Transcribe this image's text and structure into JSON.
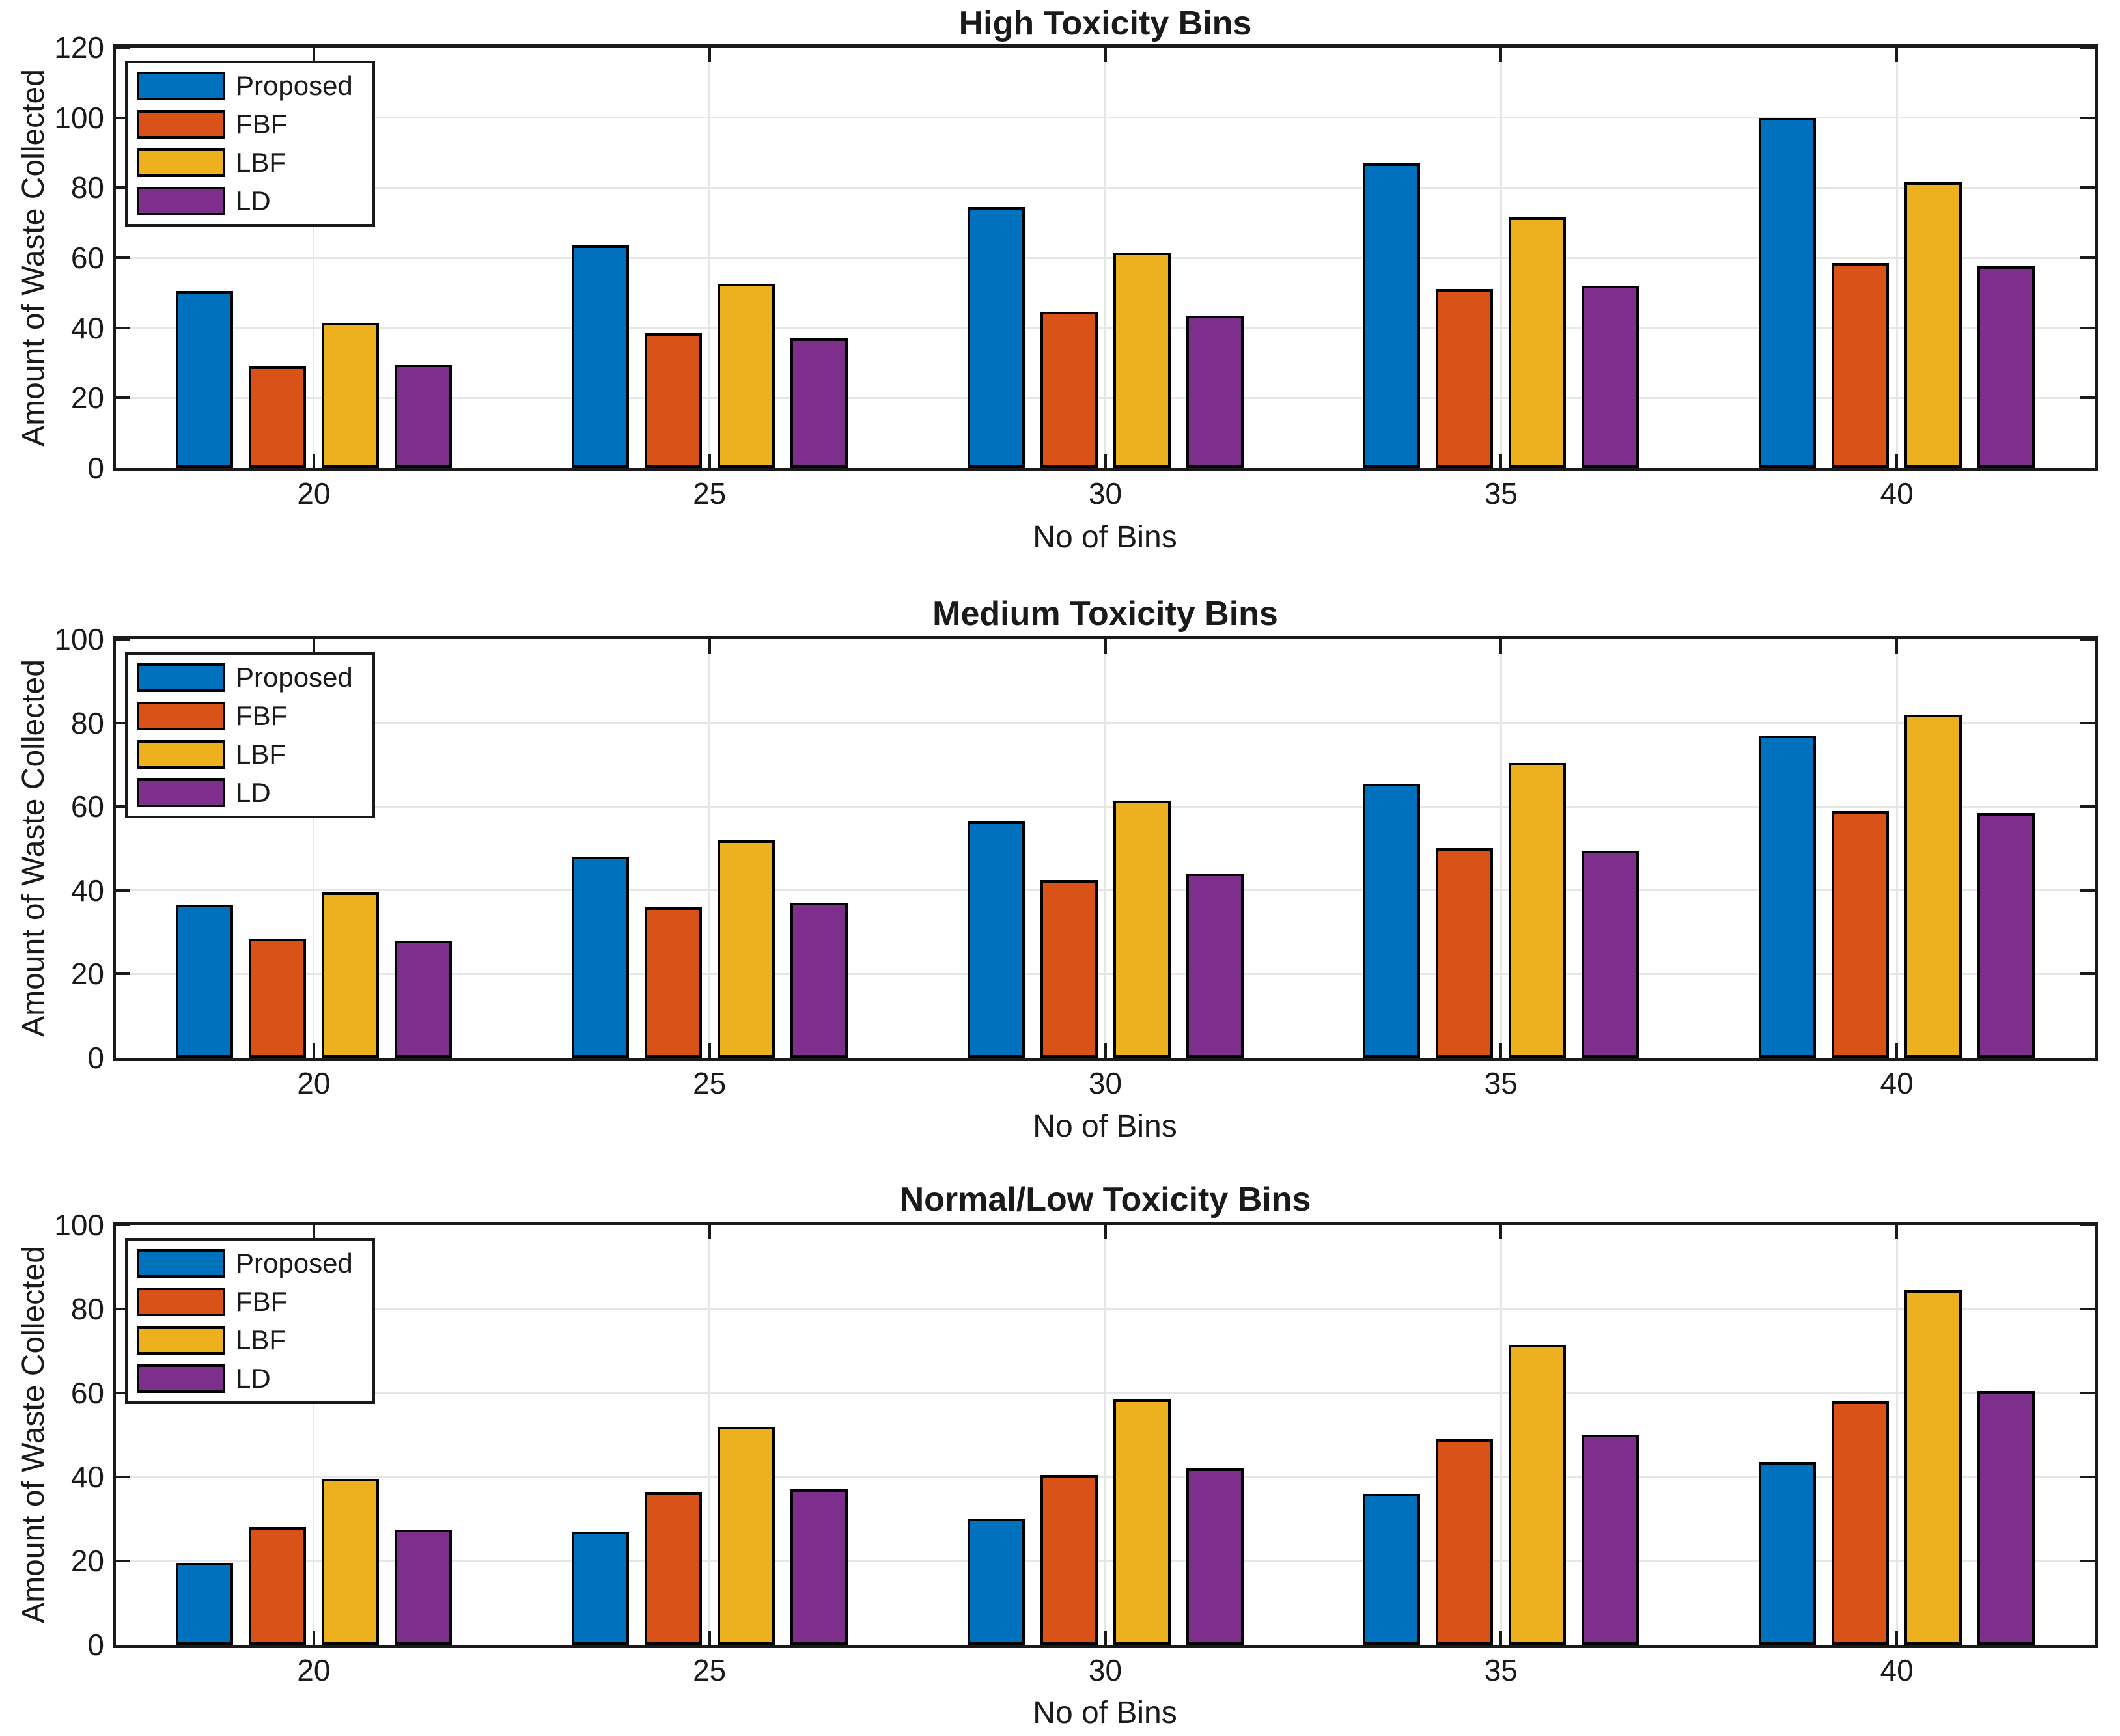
{
  "figure": {
    "background": "#ffffff",
    "axis_color": "#1a1a1a",
    "grid_color": "#e6e6e6"
  },
  "chart_data": [
    {
      "type": "bar",
      "title": "High Toxicity Bins",
      "xlabel": "No of Bins",
      "ylabel": "Amount of Waste Collected",
      "ylim": [
        0,
        120
      ],
      "yticks": [
        0,
        20,
        40,
        60,
        80,
        100,
        120
      ],
      "categories": [
        "20",
        "25",
        "30",
        "35",
        "40"
      ],
      "grid": true,
      "legend_position": "top-left",
      "series": [
        {
          "name": "Proposed",
          "color": "#0072BD",
          "values": [
            50.5,
            63.5,
            74.5,
            87,
            100
          ]
        },
        {
          "name": "FBF",
          "color": "#D95319",
          "values": [
            29,
            38.5,
            44.5,
            51,
            58.5
          ]
        },
        {
          "name": "LBF",
          "color": "#EDB120",
          "values": [
            41.5,
            52.5,
            61.5,
            71.5,
            81.5
          ]
        },
        {
          "name": "LD",
          "color": "#7E2F8E",
          "values": [
            29.5,
            37,
            43.5,
            52,
            57.5
          ]
        }
      ]
    },
    {
      "type": "bar",
      "title": "Medium Toxicity Bins",
      "xlabel": "No of Bins",
      "ylabel": "Amount of Waste Collected",
      "ylim": [
        0,
        100
      ],
      "yticks": [
        0,
        20,
        40,
        60,
        80,
        100
      ],
      "categories": [
        "20",
        "25",
        "30",
        "35",
        "40"
      ],
      "grid": true,
      "legend_position": "top-left",
      "series": [
        {
          "name": "Proposed",
          "color": "#0072BD",
          "values": [
            36.5,
            48,
            56.5,
            65.5,
            77
          ]
        },
        {
          "name": "FBF",
          "color": "#D95319",
          "values": [
            28.5,
            36,
            42.5,
            50,
            59
          ]
        },
        {
          "name": "LBF",
          "color": "#EDB120",
          "values": [
            39.5,
            52,
            61.5,
            70.5,
            82
          ]
        },
        {
          "name": "LD",
          "color": "#7E2F8E",
          "values": [
            28,
            37,
            44,
            49.5,
            58.5
          ]
        }
      ]
    },
    {
      "type": "bar",
      "title": "Normal/Low Toxicity Bins",
      "xlabel": "No of Bins",
      "ylabel": "Amount of Waste Collected",
      "ylim": [
        0,
        100
      ],
      "yticks": [
        0,
        20,
        40,
        60,
        80,
        100
      ],
      "categories": [
        "20",
        "25",
        "30",
        "35",
        "40"
      ],
      "grid": true,
      "legend_position": "top-left",
      "series": [
        {
          "name": "Proposed",
          "color": "#0072BD",
          "values": [
            19.5,
            27,
            30,
            36,
            43.5
          ]
        },
        {
          "name": "FBF",
          "color": "#D95319",
          "values": [
            28,
            36.5,
            40.5,
            49,
            58
          ]
        },
        {
          "name": "LBF",
          "color": "#EDB120",
          "values": [
            39.5,
            52,
            58.5,
            71.5,
            84.5
          ]
        },
        {
          "name": "LD",
          "color": "#7E2F8E",
          "values": [
            27.5,
            37,
            42,
            50,
            60.5
          ]
        }
      ]
    }
  ]
}
